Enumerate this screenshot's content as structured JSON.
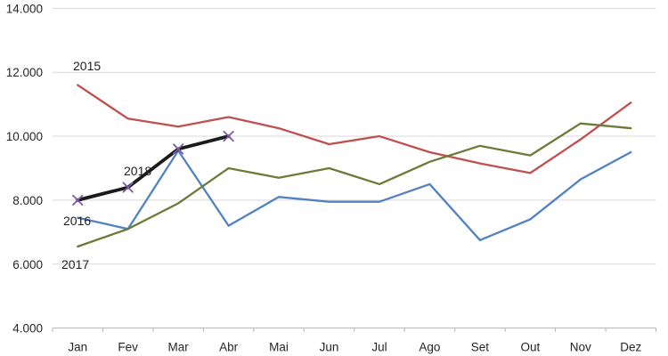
{
  "chart_data": {
    "type": "line",
    "title": "",
    "xlabel": "",
    "ylabel": "",
    "categories": [
      "Jan",
      "Fev",
      "Mar",
      "Abr",
      "Mai",
      "Jun",
      "Jul",
      "Ago",
      "Set",
      "Out",
      "Nov",
      "Dez"
    ],
    "series": [
      {
        "name": "2015",
        "color": "#c0504d",
        "line_width": 2.3,
        "values": [
          11600,
          10550,
          10300,
          10600,
          10250,
          9750,
          10000,
          9500,
          9150,
          8850,
          9900,
          11050
        ]
      },
      {
        "name": "2016",
        "color": "#5282bf",
        "line_width": 2.3,
        "values": [
          7450,
          7100,
          9550,
          7200,
          8100,
          7950,
          7950,
          8500,
          6750,
          7400,
          8650,
          9500
        ]
      },
      {
        "name": "2017",
        "color": "#6b7b38",
        "line_width": 2.3,
        "values": [
          6550,
          7100,
          7900,
          9000,
          8700,
          9000,
          8500,
          9200,
          9700,
          9400,
          10400,
          10250
        ]
      },
      {
        "name": "2018",
        "color": "#1b1b1b",
        "line_width": 3.8,
        "marker": "x",
        "marker_color": "#7b5ca3",
        "values": [
          8000,
          8400,
          9600,
          10000
        ]
      }
    ],
    "ylim": [
      4000,
      14000
    ],
    "y_tick_step": 2000,
    "y_ticks": [
      "14.000",
      "12.000",
      "10.000",
      "8.000",
      "6.000",
      "4.000"
    ],
    "grid": true,
    "legend_position": "inline-labels-near-series-start",
    "colors": {
      "gridline": "#d9d9d9",
      "axis_line": "#b3b3b3",
      "tick": "#b3b3b3",
      "label_text": "#262626"
    }
  }
}
